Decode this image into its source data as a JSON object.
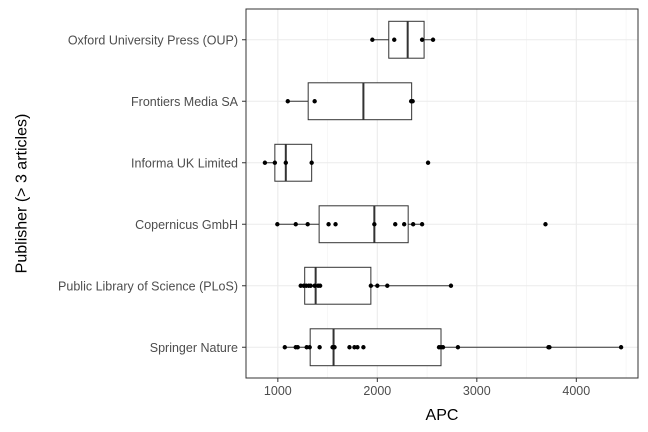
{
  "chart_data": {
    "type": "boxplot",
    "orientation": "horizontal",
    "xlabel": "APC",
    "ylabel": "Publisher (> 3 articles)",
    "xlim": [
      680,
      4620
    ],
    "xticks": [
      1000,
      2000,
      3000,
      4000
    ],
    "grid": true,
    "theme": "bw",
    "categories": [
      "Oxford University Press (OUP)",
      "Frontiers Media SA",
      "Informa UK Limited",
      "Copernicus GmbH",
      "Public Library of Science (PLoS)",
      "Springer Nature"
    ],
    "boxes": [
      {
        "category": "Oxford University Press (OUP)",
        "whisker_low": 1950,
        "q1": 2115,
        "median": 2305,
        "q3": 2470,
        "whisker_high": 2560,
        "outliers": []
      },
      {
        "category": "Frontiers Media SA",
        "whisker_low": 1100,
        "q1": 1305,
        "median": 1860,
        "q3": 2345,
        "whisker_high": 2355,
        "outliers": []
      },
      {
        "category": "Informa UK Limited",
        "whisker_low": 870,
        "q1": 970,
        "median": 1080,
        "q3": 1340,
        "whisker_high": 1340,
        "outliers": [
          2510
        ]
      },
      {
        "category": "Copernicus GmbH",
        "whisker_low": 995,
        "q1": 1415,
        "median": 1970,
        "q3": 2310,
        "whisker_high": 2450,
        "outliers": [
          3690
        ]
      },
      {
        "category": "Public Library of Science (PLoS)",
        "whisker_low": 1230,
        "q1": 1270,
        "median": 1380,
        "q3": 1935,
        "whisker_high": 2740,
        "outliers": []
      },
      {
        "category": "Springer Nature",
        "whisker_low": 1070,
        "q1": 1325,
        "median": 1560,
        "q3": 2640,
        "whisker_high": 4450,
        "outliers": []
      }
    ],
    "points": [
      {
        "category": "Oxford University Press (OUP)",
        "x": [
          1950,
          2170,
          2450,
          2560
        ]
      },
      {
        "category": "Frontiers Media SA",
        "x": [
          1100,
          1370,
          2340,
          2355
        ]
      },
      {
        "category": "Informa UK Limited",
        "x": [
          870,
          970,
          1080,
          1340,
          2510
        ]
      },
      {
        "category": "Copernicus GmbH",
        "x": [
          995,
          1180,
          1300,
          1510,
          1580,
          1970,
          2180,
          2270,
          2360,
          2450,
          3690
        ]
      },
      {
        "category": "Public Library of Science (PLoS)",
        "x": [
          1230,
          1260,
          1285,
          1310,
          1330,
          1370,
          1405,
          1425,
          1935,
          2000,
          2100,
          2740
        ]
      },
      {
        "category": "Springer Nature",
        "x": [
          1070,
          1180,
          1200,
          1290,
          1320,
          1420,
          1550,
          1570,
          1720,
          1770,
          1800,
          1860,
          2620,
          2640,
          2660,
          2810,
          3720,
          3730,
          4450
        ]
      }
    ]
  }
}
